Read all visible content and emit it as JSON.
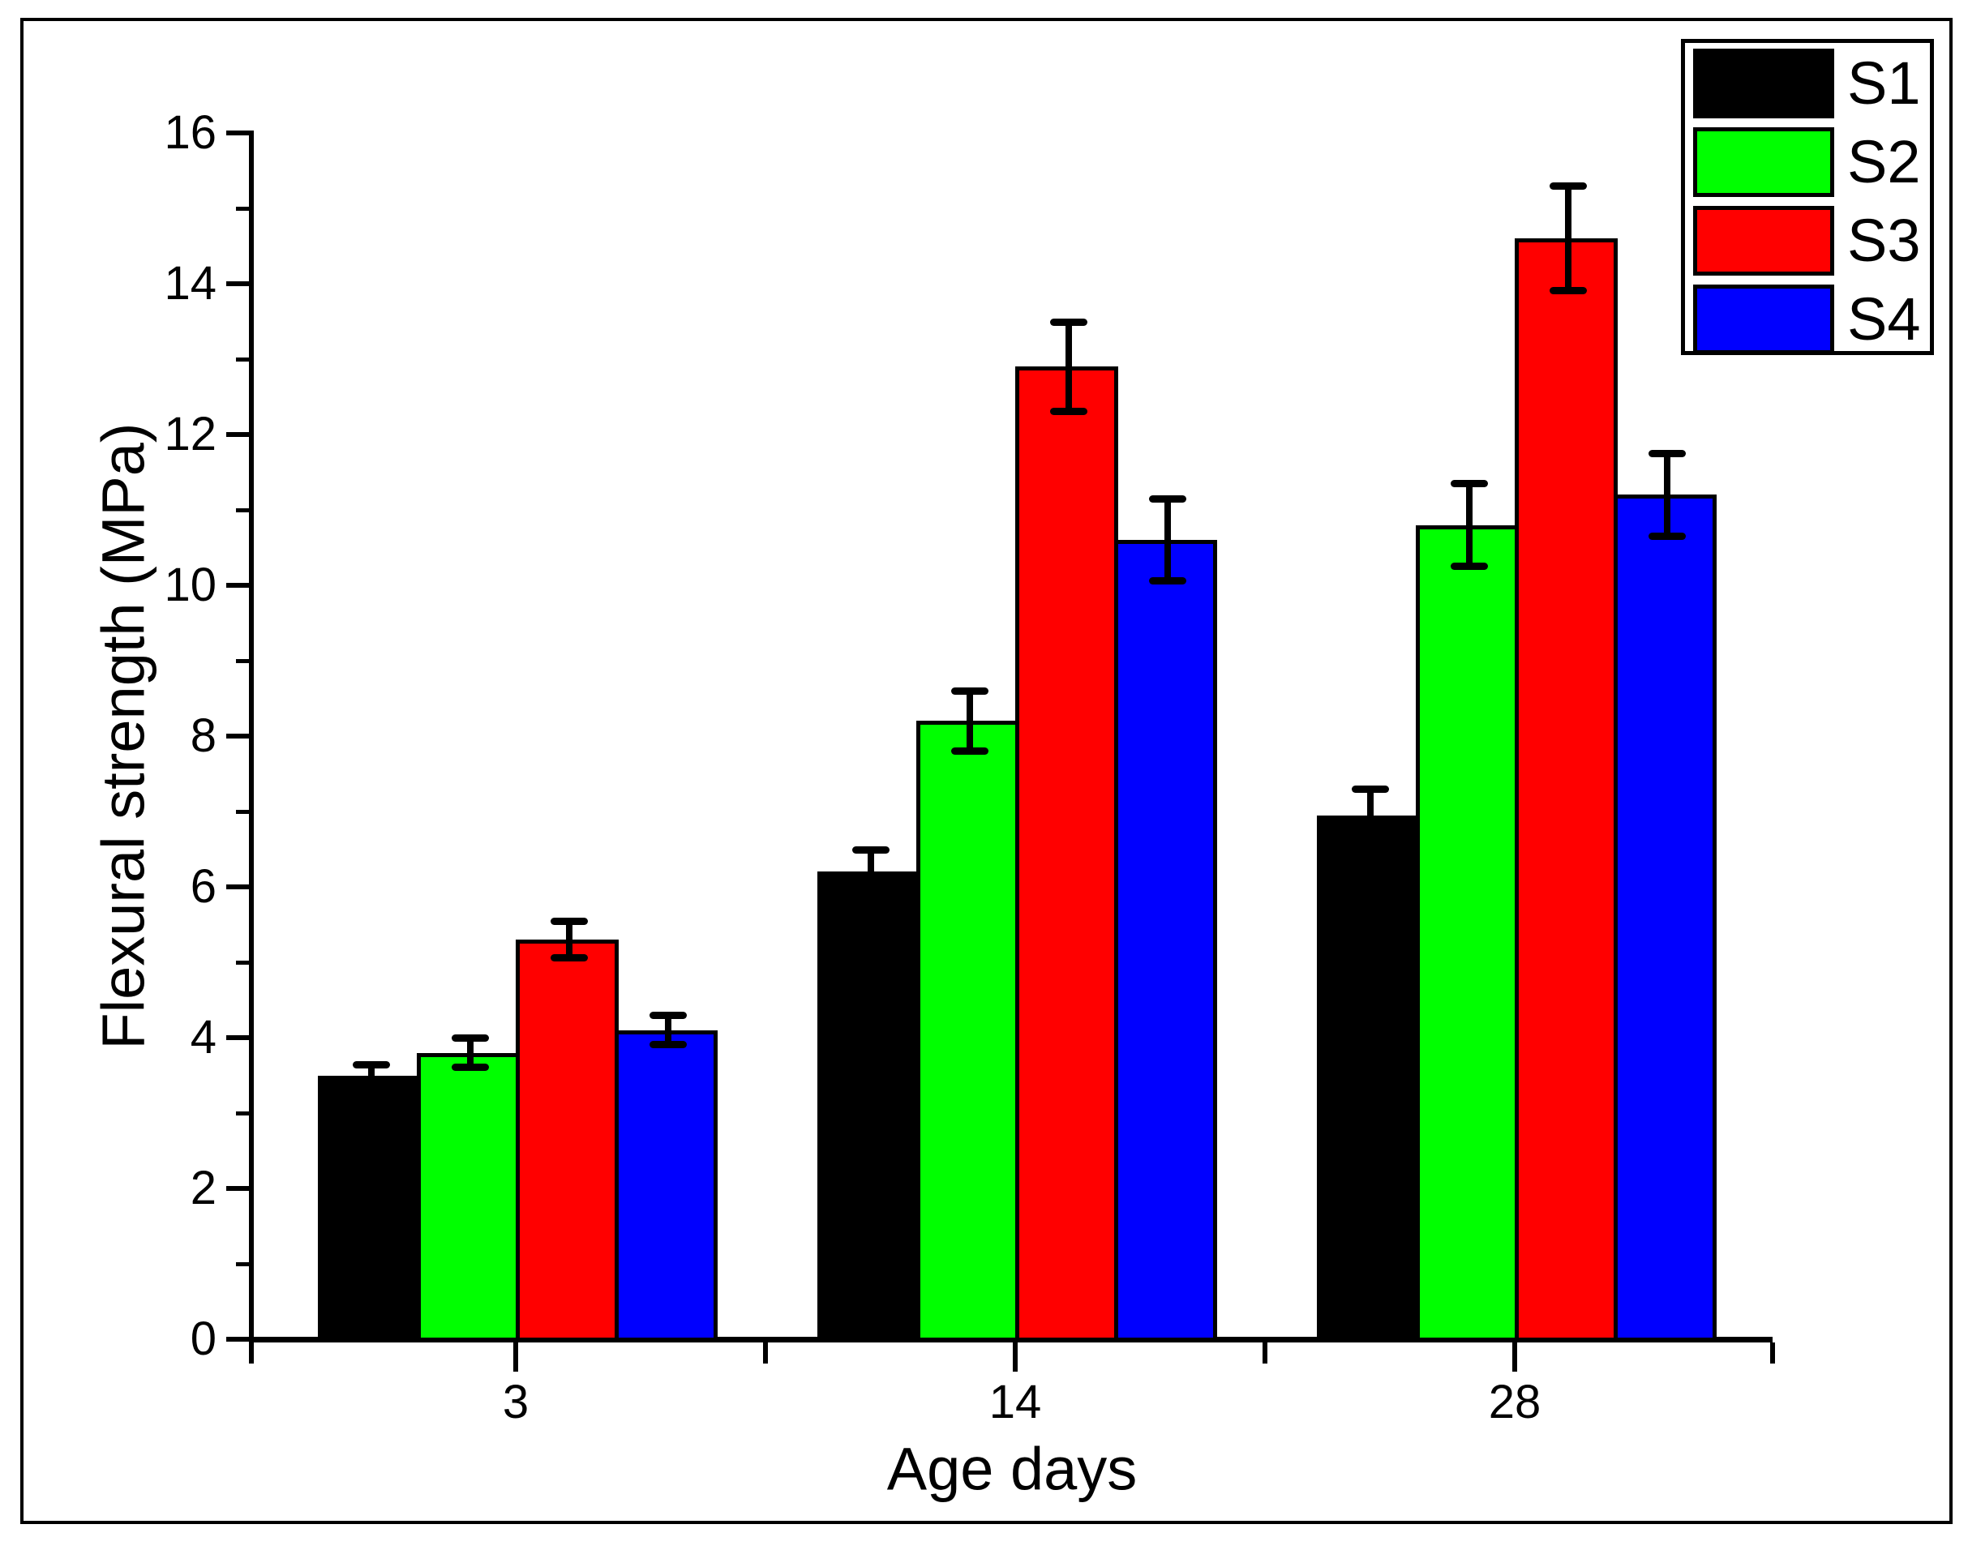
{
  "figure": {
    "background": "#FFFFFF",
    "border_color": "#000000"
  },
  "chart_data": {
    "type": "bar",
    "title": "",
    "xlabel": "Age days",
    "ylabel": "Flexural strength (MPa)",
    "categories": [
      "3",
      "14",
      "28"
    ],
    "series": [
      {
        "name": "S1",
        "color": "#000000",
        "values": [
          3.5,
          6.2,
          6.95
        ],
        "errors": [
          0.15,
          0.3,
          0.35
        ]
      },
      {
        "name": "S2",
        "color": "#00FF00",
        "values": [
          3.8,
          8.2,
          10.8
        ],
        "errors": [
          0.2,
          0.4,
          0.55
        ]
      },
      {
        "name": "S3",
        "color": "#FF0000",
        "values": [
          5.3,
          12.9,
          14.6
        ],
        "errors": [
          0.25,
          0.6,
          0.7
        ]
      },
      {
        "name": "S4",
        "color": "#0000FF",
        "values": [
          4.1,
          10.6,
          11.2
        ],
        "errors": [
          0.2,
          0.55,
          0.55
        ]
      }
    ],
    "ylim": [
      0,
      16
    ],
    "y_major_step": 2,
    "y_minor_step": 1,
    "y_tick_labels": [
      "0",
      "2",
      "4",
      "6",
      "8",
      "10",
      "12",
      "14",
      "16"
    ],
    "grid": false,
    "error_bars": true,
    "legend_position": "top-right",
    "legend_entries": [
      "S1",
      "S2",
      "S3",
      "S4"
    ]
  }
}
